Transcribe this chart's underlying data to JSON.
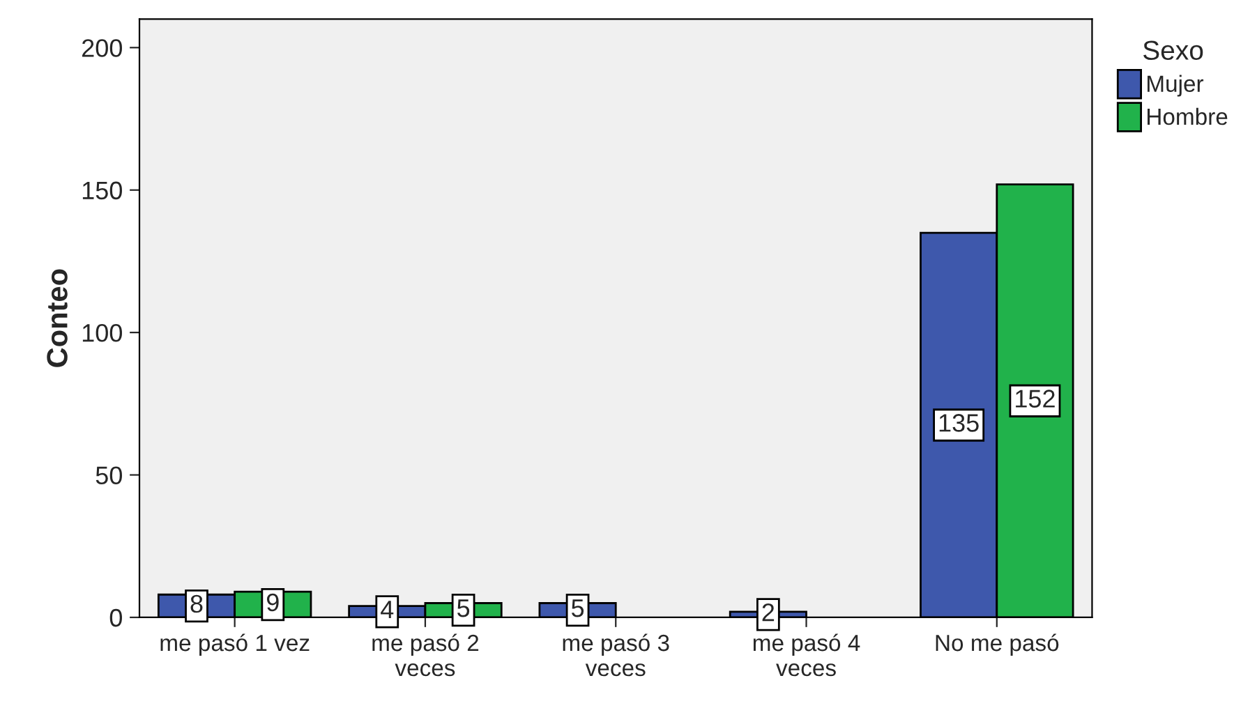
{
  "chart_data": {
    "type": "bar",
    "ylabel": "Conteo",
    "legend_title": "Sexo",
    "categories": [
      "me pasó 1 vez",
      "me pasó 2\nveces",
      "me pasó 3\nveces",
      "me pasó 4\nveces",
      "No me pasó"
    ],
    "series": [
      {
        "name": "Mujer",
        "color": "#3e58ac",
        "values": [
          8,
          4,
          5,
          2,
          135
        ]
      },
      {
        "name": "Hombre",
        "color": "#21b24b",
        "values": [
          9,
          5,
          null,
          null,
          152
        ]
      }
    ],
    "ylim": [
      0,
      210
    ],
    "yticks": [
      0,
      50,
      100,
      150,
      200
    ],
    "grid": false,
    "legend": "right",
    "data_labels": true
  }
}
